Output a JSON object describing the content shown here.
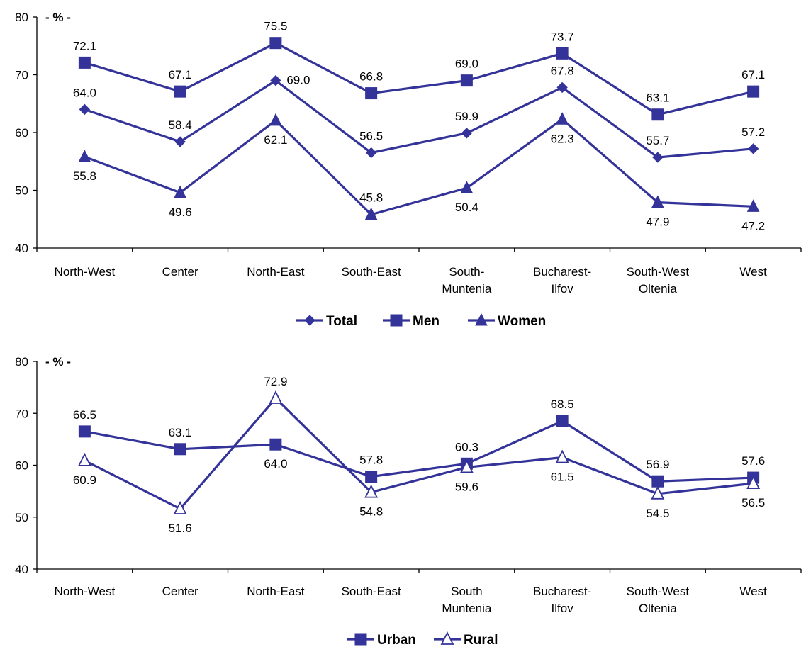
{
  "colors": {
    "series": "#333399",
    "axis": "#000000"
  },
  "chart_data": [
    {
      "type": "line",
      "unit_label": "- % -",
      "ylim": [
        40,
        80
      ],
      "yticks": [
        40,
        50,
        60,
        70,
        80
      ],
      "categories": [
        [
          "North-West"
        ],
        [
          "Center"
        ],
        [
          "North-East"
        ],
        [
          "South-East"
        ],
        [
          "South-",
          "Muntenia"
        ],
        [
          "Bucharest-",
          "Ilfov"
        ],
        [
          "South-West",
          "Oltenia"
        ],
        [
          "West"
        ]
      ],
      "series": [
        {
          "name": "Total",
          "marker": "diamond",
          "values": [
            64.0,
            58.4,
            69.0,
            56.5,
            59.9,
            67.8,
            55.7,
            57.2
          ]
        },
        {
          "name": "Men",
          "marker": "square",
          "values": [
            72.1,
            67.1,
            75.5,
            66.8,
            69.0,
            73.7,
            63.1,
            67.1
          ]
        },
        {
          "name": "Women",
          "marker": "triangle",
          "values": [
            55.8,
            49.6,
            62.1,
            45.8,
            50.4,
            62.3,
            47.9,
            47.2
          ]
        }
      ],
      "data_labels": [
        [
          "64.0",
          "58.4",
          "69.0",
          "56.5",
          "59.9",
          "67.8",
          "55.7",
          "57.2"
        ],
        [
          "72.1",
          "67.1",
          "75.5",
          "66.8",
          "69.0",
          "73.7",
          "63.1",
          "67.1"
        ],
        [
          "55.8",
          "49.6",
          "62.1",
          "45.8",
          "50.4",
          "62.3",
          "47.9",
          "47.2"
        ]
      ],
      "legend_position": "bottom"
    },
    {
      "type": "line",
      "unit_label": "- % -",
      "ylim": [
        40,
        80
      ],
      "yticks": [
        40,
        50,
        60,
        70,
        80
      ],
      "categories": [
        [
          "North-West"
        ],
        [
          "Center"
        ],
        [
          "North-East"
        ],
        [
          "South-East"
        ],
        [
          "South",
          "Muntenia"
        ],
        [
          "Bucharest-",
          "Ilfov"
        ],
        [
          "South-West",
          "Oltenia"
        ],
        [
          "West"
        ]
      ],
      "series": [
        {
          "name": "Urban",
          "marker": "square",
          "values": [
            66.5,
            63.1,
            64.0,
            57.8,
            60.3,
            68.5,
            56.9,
            57.6
          ]
        },
        {
          "name": "Rural",
          "marker": "triangle-open",
          "values": [
            60.9,
            51.6,
            72.9,
            54.8,
            59.6,
            61.5,
            54.5,
            56.5
          ]
        }
      ],
      "data_labels": [
        [
          "66.5",
          "63.1",
          "64.0",
          "57.8",
          "60.3",
          "68.5",
          "56.9",
          "57.6"
        ],
        [
          "60.9",
          "51.6",
          "72.9",
          "54.8",
          "59.6",
          "61.5",
          "54.5",
          "56.5"
        ]
      ],
      "legend_position": "bottom"
    }
  ]
}
